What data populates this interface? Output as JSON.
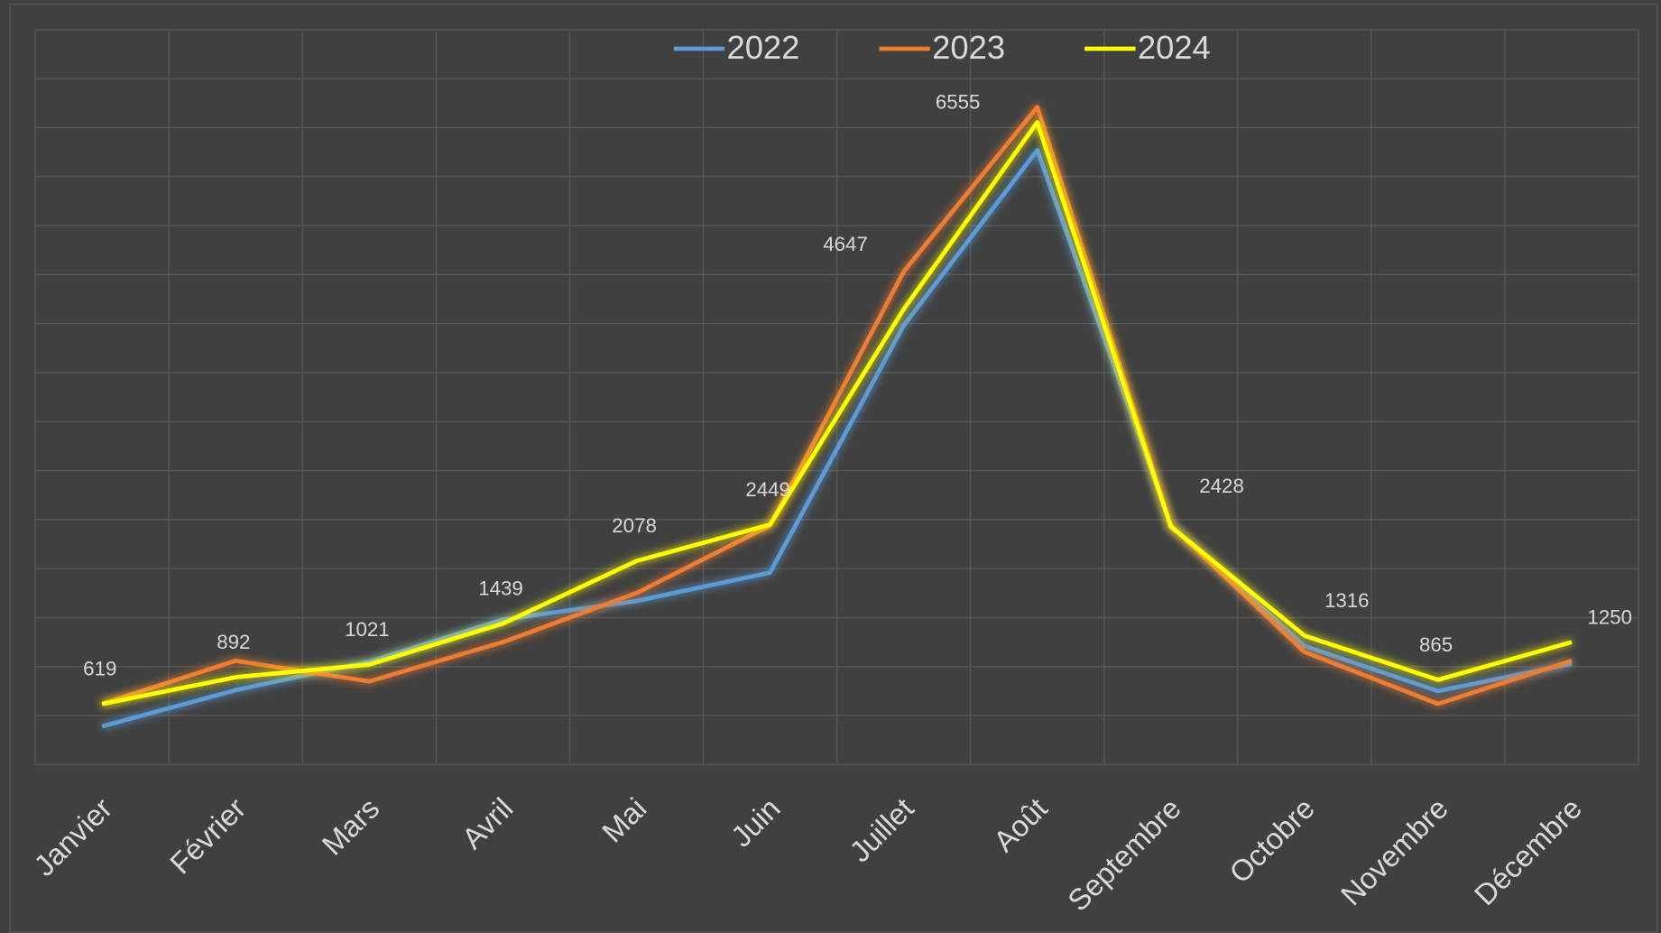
{
  "chart_data": {
    "type": "line",
    "categories": [
      "Janvier",
      "Février",
      "Mars",
      "Avril",
      "Mai",
      "Juin",
      "Juillet",
      "Août",
      "Septembre",
      "Octobre",
      "Novembre",
      "Décembre"
    ],
    "series": [
      {
        "name": "2022",
        "color": "#5b9bd5",
        "values": [
          390,
          760,
          1050,
          1480,
          1670,
          1960,
          4480,
          6270,
          2440,
          1210,
          750,
          1030
        ]
      },
      {
        "name": "2023",
        "color": "#ed7d31",
        "values": [
          620,
          1060,
          850,
          1250,
          1750,
          2440,
          5030,
          6710,
          2440,
          1150,
          620,
          1060
        ]
      },
      {
        "name": "2024",
        "color": "#ffff00",
        "values": [
          619,
          892,
          1021,
          1439,
          2078,
          2449,
          4647,
          6555,
          2428,
          1316,
          865,
          1250
        ]
      }
    ],
    "labeled_series": 2,
    "ylim": [
      0,
      7500
    ],
    "yticks": [
      0,
      500,
      1000,
      1500,
      2000,
      2500,
      3000,
      3500,
      4000,
      4500,
      5000,
      5500,
      6000,
      6500,
      7000,
      7500
    ],
    "grid": true,
    "legend": "top"
  }
}
